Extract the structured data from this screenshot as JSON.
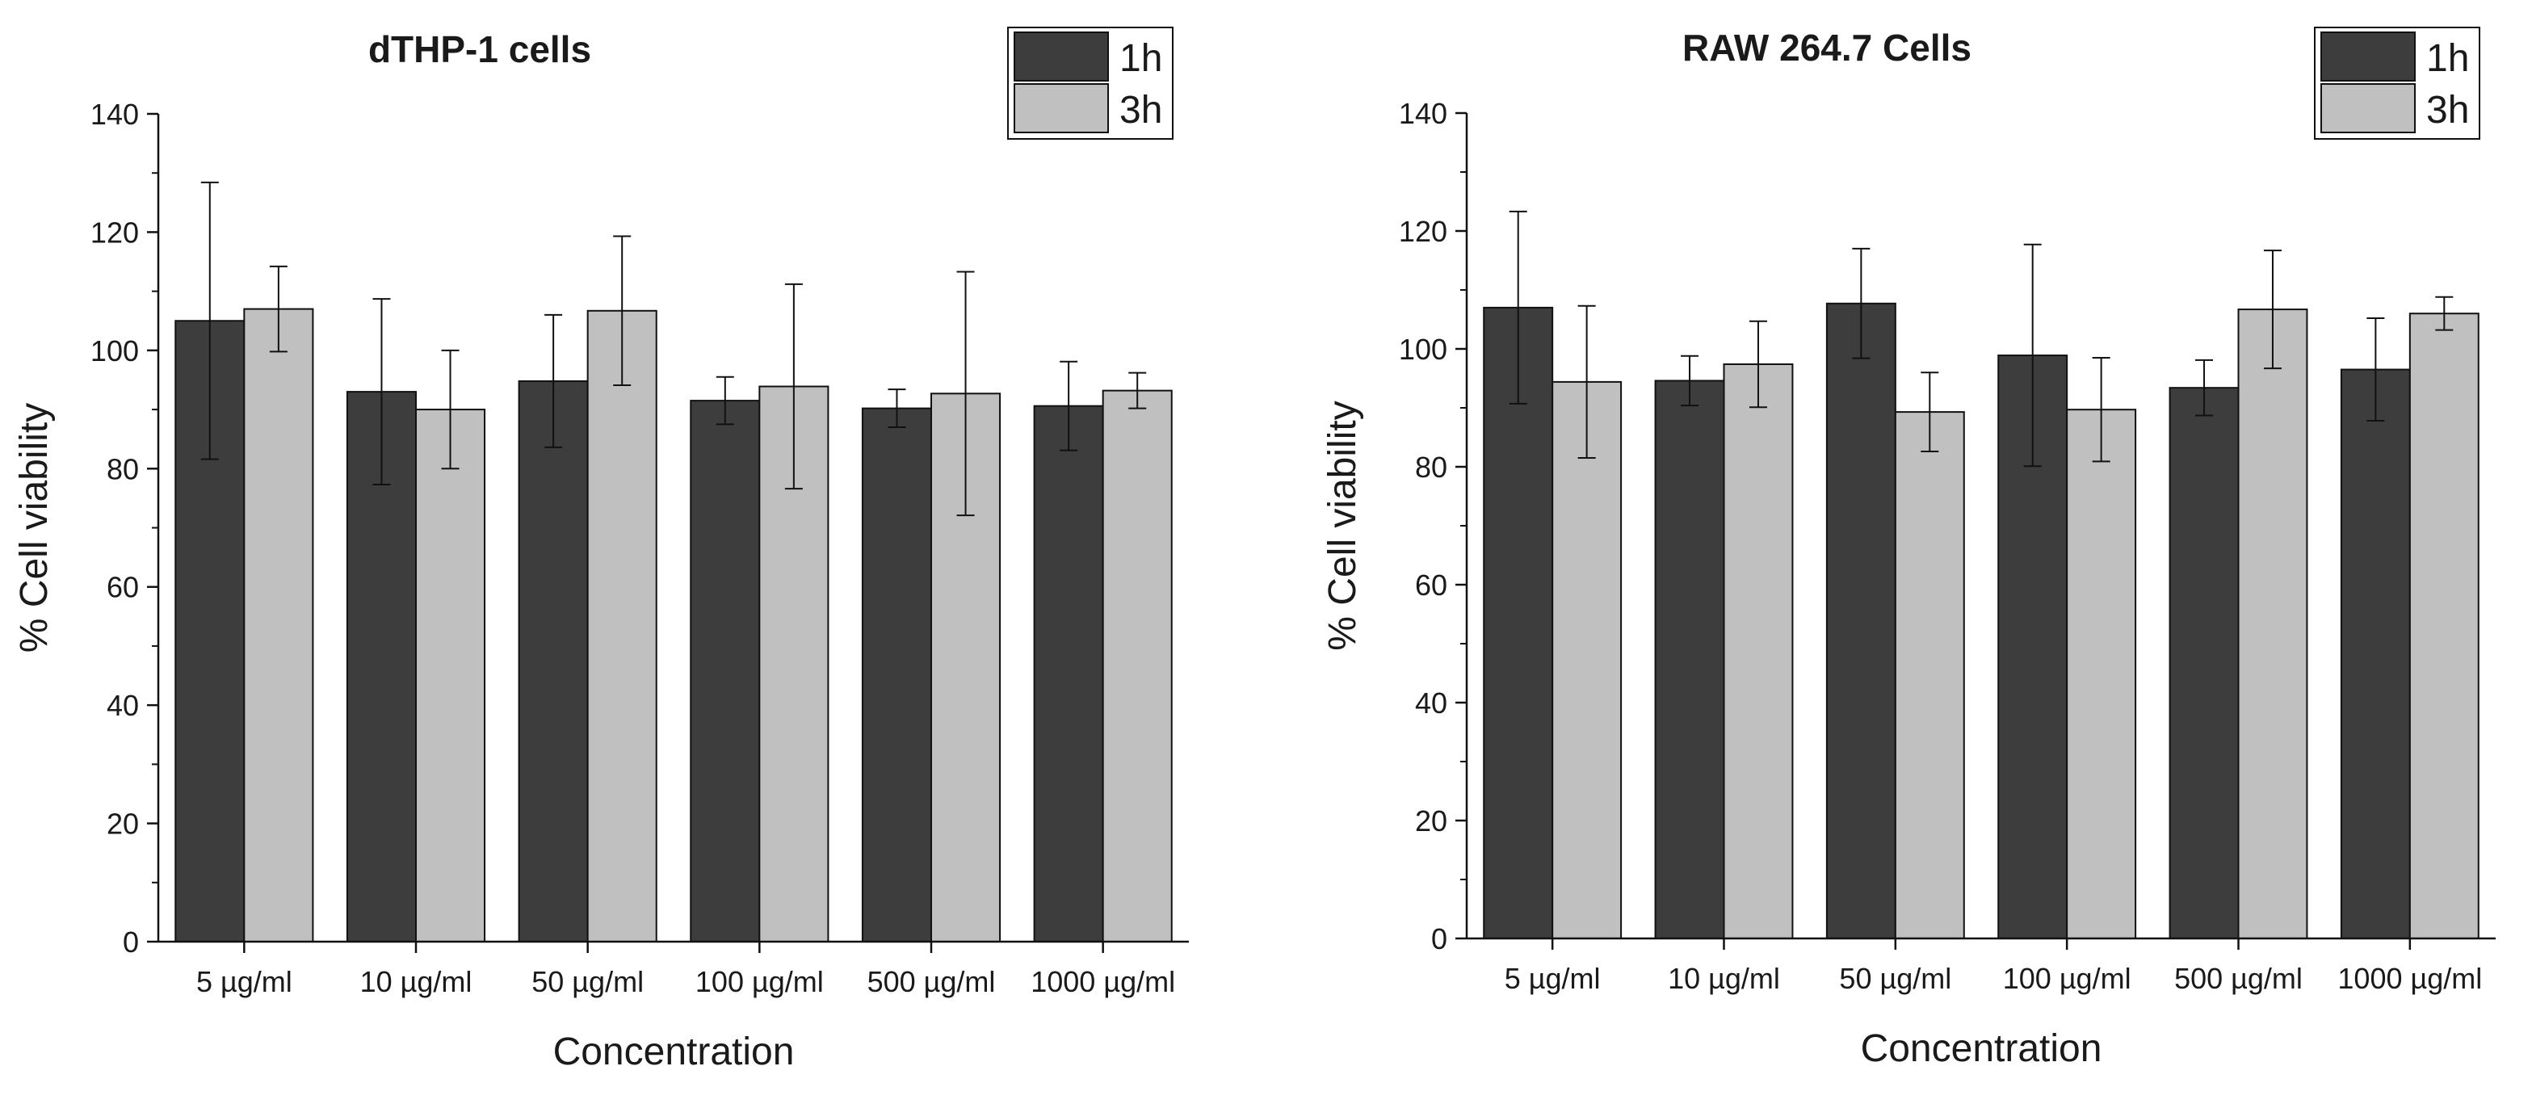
{
  "chart_data": [
    {
      "type": "bar",
      "title": "dTHP-1 cells",
      "xlabel": "Concentration",
      "ylabel": "% Cell viability",
      "ylim": [
        0,
        140
      ],
      "yticks": [
        0,
        20,
        40,
        60,
        80,
        100,
        120,
        140
      ],
      "grid": false,
      "legend_position": "top-right",
      "categories": [
        "5 µg/ml",
        "10 µg/ml",
        "50 µg/ml",
        "100 µg/ml",
        "500 µg/ml",
        "1000 µg/ml"
      ],
      "series": [
        {
          "name": "1h",
          "color": "#3d3d3d",
          "values": [
            105.0,
            93.0,
            94.8,
            91.5,
            90.2,
            90.6
          ],
          "error": [
            23.4,
            15.7,
            11.2,
            4.0,
            3.2,
            7.5
          ]
        },
        {
          "name": "3h",
          "color": "#c0c0c0",
          "values": [
            107.0,
            90.0,
            106.7,
            93.9,
            92.7,
            93.2
          ],
          "error": [
            7.2,
            10.0,
            12.6,
            17.3,
            20.6,
            3.0
          ]
        }
      ]
    },
    {
      "type": "bar",
      "title": "RAW 264.7 Cells",
      "xlabel": "Concentration",
      "ylabel": "% Cell viability",
      "ylim": [
        0,
        140
      ],
      "yticks": [
        0,
        20,
        40,
        60,
        80,
        100,
        120,
        140
      ],
      "grid": false,
      "legend_position": "top-right",
      "categories": [
        "5 µg/ml",
        "10 µg/ml",
        "50 µg/ml",
        "100 µg/ml",
        "500 µg/ml",
        "1000 µg/ml"
      ],
      "series": [
        {
          "name": "1h",
          "color": "#3d3d3d",
          "values": [
            107.0,
            94.6,
            107.7,
            98.9,
            93.4,
            96.5
          ],
          "error": [
            16.3,
            4.2,
            9.3,
            18.8,
            4.7,
            8.7
          ]
        },
        {
          "name": "3h",
          "color": "#c0c0c0",
          "values": [
            94.4,
            97.4,
            89.3,
            89.7,
            106.7,
            106.0
          ],
          "error": [
            12.9,
            7.3,
            6.7,
            8.8,
            10.0,
            2.8
          ]
        }
      ]
    }
  ]
}
